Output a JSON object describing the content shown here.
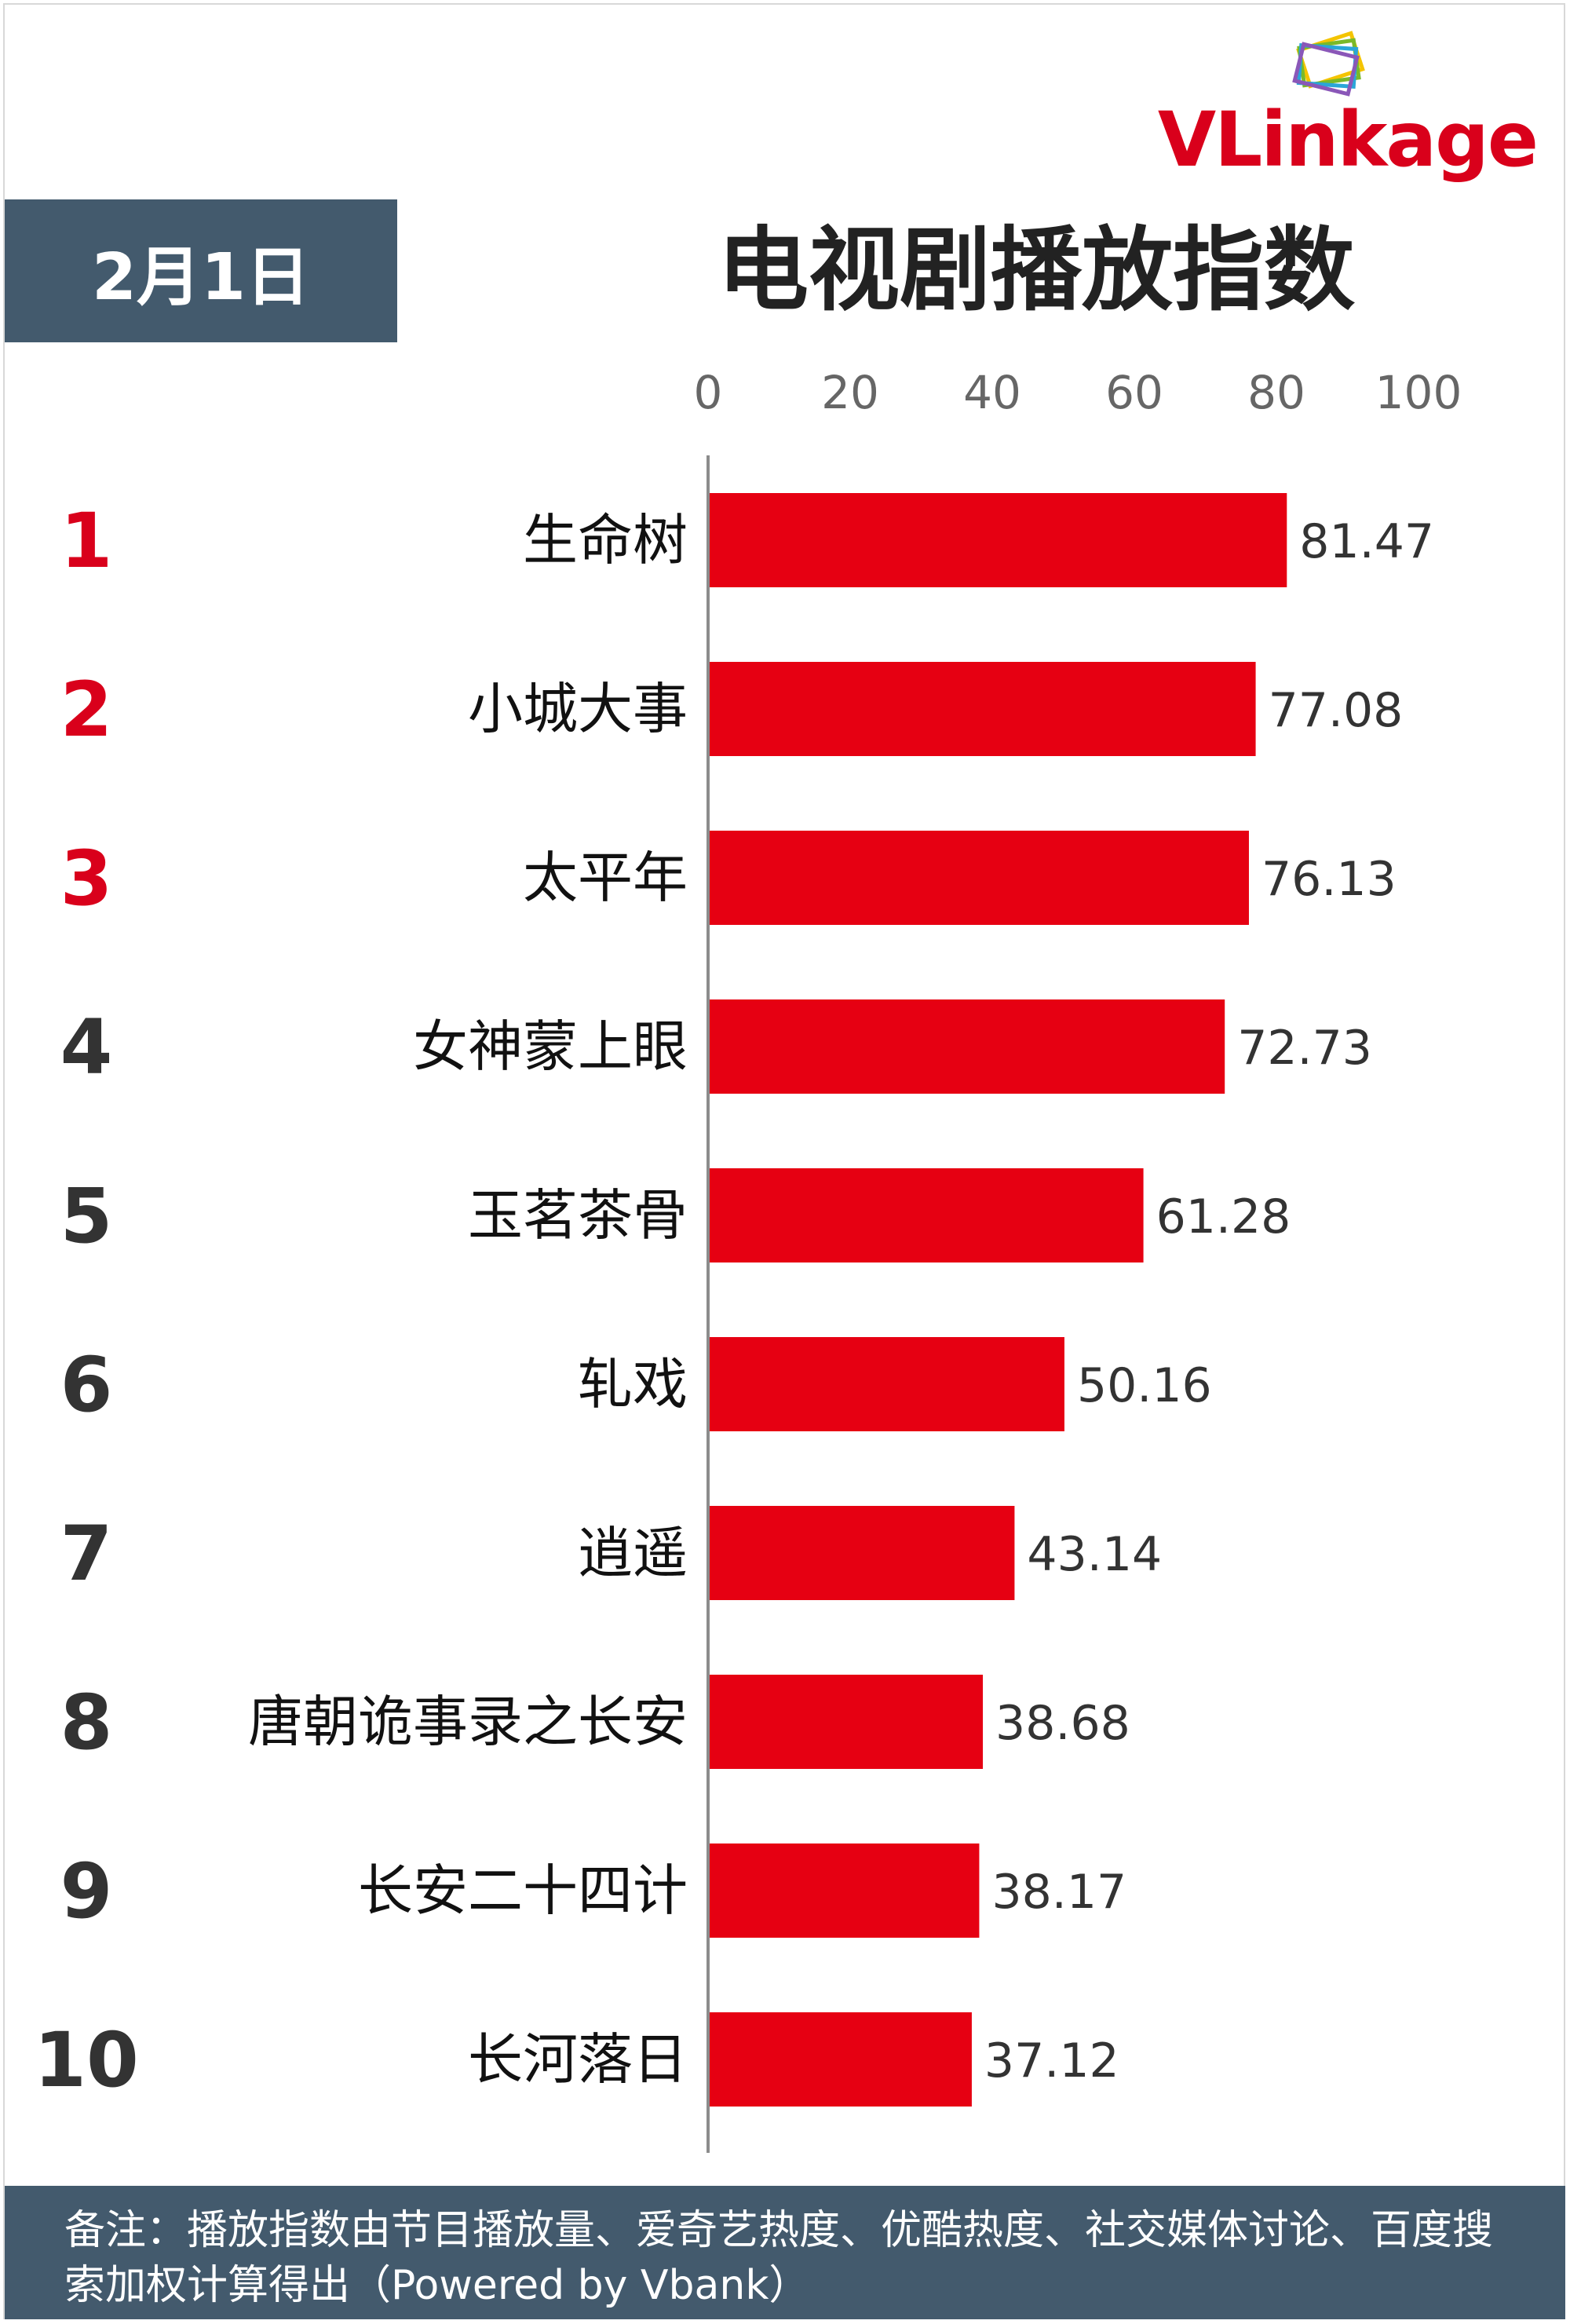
{
  "brand": {
    "logo_text": "VLinkage"
  },
  "header": {
    "date": "2月1日"
  },
  "chart_data": {
    "type": "bar",
    "orientation": "horizontal",
    "title": "电视剧播放指数",
    "xlim": [
      0,
      100
    ],
    "xticks": [
      "0",
      "20",
      "40",
      "60",
      "80",
      "100"
    ],
    "ranks": [
      "1",
      "2",
      "3",
      "4",
      "5",
      "6",
      "7",
      "8",
      "9",
      "10"
    ],
    "categories": [
      "生命树",
      "小城大事",
      "太平年",
      "女神蒙上眼",
      "玉茗茶骨",
      "轧戏",
      "逍遥",
      "唐朝诡事录之长安",
      "长安二十四计",
      "长河落日"
    ],
    "values": [
      81.47,
      77.08,
      76.13,
      72.73,
      61.28,
      50.16,
      43.14,
      38.68,
      38.17,
      37.12
    ],
    "value_labels": [
      "81.47",
      "77.08",
      "76.13",
      "72.73",
      "61.28",
      "50.16",
      "43.14",
      "38.68",
      "38.17",
      "37.12"
    ],
    "bar_color": "#e60012",
    "top_rank_color": "#d9001b",
    "rank_color": "#333333",
    "grid": false
  },
  "footer": {
    "note": "备注：播放指数由节目播放量、爱奇艺热度、优酷热度、社交媒体讨论、百度搜索加权计算得出（Powered by Vbank）"
  }
}
